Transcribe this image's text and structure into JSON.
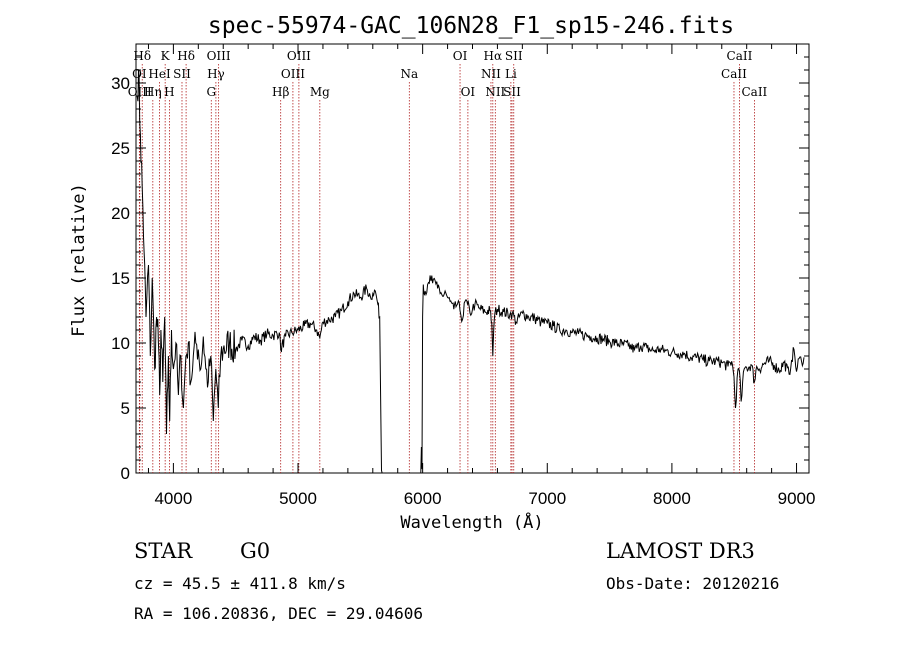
{
  "chart_data": {
    "type": "line",
    "title": "spec-55974-GAC_106N28_F1_sp15-246.fits",
    "xlabel": "Wavelength (Å)",
    "ylabel": "Flux (relative)",
    "xlim": [
      3700,
      9100
    ],
    "ylim": [
      0,
      33
    ],
    "x_ticks": [
      4000,
      5000,
      6000,
      7000,
      8000,
      9000
    ],
    "y_ticks": [
      0,
      5,
      10,
      15,
      20,
      25,
      30
    ],
    "x_tick_labels": [
      "4000",
      "5000",
      "6000",
      "7000",
      "8000",
      "9000"
    ],
    "y_tick_labels": [
      "0",
      "5",
      "10",
      "15",
      "20",
      "25",
      "30"
    ],
    "line_color": "#000000",
    "marker_color": "#b22222",
    "spectrum": {
      "name": "flux",
      "x": [
        3710,
        3720,
        3735,
        3750,
        3765,
        3780,
        3800,
        3815,
        3830,
        3850,
        3865,
        3880,
        3890,
        3900,
        3915,
        3930,
        3945,
        3960,
        3970,
        3985,
        4000,
        4020,
        4040,
        4060,
        4080,
        4100,
        4120,
        4140,
        4160,
        4180,
        4200,
        4220,
        4240,
        4260,
        4280,
        4300,
        4320,
        4340,
        4360,
        4380,
        4400,
        4450,
        4500,
        4550,
        4600,
        4650,
        4700,
        4750,
        4800,
        4850,
        4861,
        4900,
        4950,
        5000,
        5050,
        5100,
        5150,
        5175,
        5200,
        5250,
        5300,
        5350,
        5400,
        5450,
        5500,
        5550,
        5580,
        5600,
        5620,
        5640,
        5655,
        5665,
        5670,
        5675,
        5680,
        5685,
        5700,
        5800,
        5900,
        5970,
        5985,
        5990,
        5995,
        6000,
        6005,
        6010,
        6020,
        6040,
        6060,
        6080,
        6100,
        6120,
        6140,
        6160,
        6180,
        6200,
        6220,
        6250,
        6280,
        6300,
        6320,
        6340,
        6360,
        6380,
        6400,
        6420,
        6450,
        6500,
        6540,
        6555,
        6563,
        6570,
        6580,
        6600,
        6650,
        6700,
        6720,
        6750,
        6800,
        6850,
        6900,
        6950,
        7000,
        7050,
        7100,
        7150,
        7200,
        7250,
        7300,
        7350,
        7400,
        7450,
        7500,
        7550,
        7600,
        7650,
        7700,
        7750,
        7800,
        7850,
        7900,
        7950,
        8000,
        8050,
        8100,
        8150,
        8200,
        8250,
        8300,
        8350,
        8400,
        8450,
        8480,
        8498,
        8510,
        8530,
        8542,
        8555,
        8580,
        8600,
        8640,
        8662,
        8680,
        8700,
        8740,
        8780,
        8820,
        8860,
        8900,
        8940,
        8960,
        8980,
        9000,
        9020,
        9040,
        9060
      ],
      "y": [
        29,
        31,
        26,
        22,
        17,
        12,
        16,
        9,
        15,
        8,
        12,
        10,
        6,
        11,
        7,
        12,
        3,
        9,
        4,
        11,
        8,
        10,
        6,
        9,
        5,
        9,
        10,
        7,
        9,
        10,
        9.5,
        8,
        10.5,
        8,
        7,
        9,
        4,
        8,
        5,
        9,
        9.5,
        10,
        9.5,
        10.2,
        9.8,
        10.5,
        10.2,
        10.7,
        10.6,
        10.8,
        9.5,
        10.5,
        10.8,
        11.0,
        11.3,
        11.5,
        11.0,
        10.4,
        11.6,
        11.8,
        12.0,
        12.5,
        13.2,
        13.8,
        13.5,
        14.2,
        13.6,
        13.8,
        14.0,
        13.0,
        12.0,
        4.0,
        0.2,
        0.0,
        0.0,
        0.0,
        0.0,
        0.0,
        0.0,
        0.0,
        0.0,
        2.0,
        0.3,
        12.0,
        14.5,
        13.8,
        14.0,
        14.5,
        15.2,
        14.6,
        14.8,
        14.2,
        13.8,
        13.6,
        14.0,
        13.5,
        13.2,
        12.6,
        13.0,
        12.5,
        11.8,
        13.2,
        13.0,
        12.3,
        12.6,
        13.0,
        12.7,
        12.4,
        12.5,
        11.5,
        9.0,
        11.0,
        12.3,
        12.6,
        12.4,
        12.2,
        12.3,
        11.6,
        12.3,
        12.0,
        11.9,
        11.6,
        11.5,
        11.3,
        11.0,
        11.0,
        10.8,
        10.7,
        10.6,
        10.5,
        10.4,
        10.3,
        10.1,
        10.0,
        9.9,
        9.8,
        9.5,
        9.8,
        9.6,
        9.4,
        9.5,
        9.4,
        9.3,
        9.2,
        9.2,
        8.9,
        8.9,
        8.7,
        8.6,
        8.6,
        8.5,
        8.2,
        8.6,
        7.4,
        5.0,
        8.0,
        7.8,
        5.5,
        8.0,
        8.1,
        8.3,
        7.0,
        8.2,
        8.0,
        8.4,
        8.6,
        8.3,
        7.9,
        8.5,
        7.6,
        8.7,
        9.5,
        7.8,
        8.8,
        8.6,
        8.9
      ]
    },
    "lines": [
      {
        "label": "Hδ",
        "wl": 3750,
        "row": 0
      },
      {
        "label": "K",
        "wl": 3934,
        "row": 0
      },
      {
        "label": "Hδ",
        "wl": 4102,
        "row": 0
      },
      {
        "label": "OIII",
        "wl": 4363,
        "row": 0
      },
      {
        "label": "OIII",
        "wl": 5007,
        "row": 0
      },
      {
        "label": "OI",
        "wl": 6300,
        "row": 0
      },
      {
        "label": "Hα",
        "wl": 6563,
        "row": 0
      },
      {
        "label": "SII",
        "wl": 6731,
        "row": 0
      },
      {
        "label": "CaII",
        "wl": 8542,
        "row": 0
      },
      {
        "label": "OI",
        "wl": 3727,
        "row": 1
      },
      {
        "label": "HeI",
        "wl": 3889,
        "row": 1
      },
      {
        "label": "SII",
        "wl": 4069,
        "row": 1
      },
      {
        "label": "Hγ",
        "wl": 4341,
        "row": 1
      },
      {
        "label": "OIII",
        "wl": 4959,
        "row": 1
      },
      {
        "label": "Na",
        "wl": 5893,
        "row": 1
      },
      {
        "label": "NII",
        "wl": 6548,
        "row": 1
      },
      {
        "label": "Li",
        "wl": 6708,
        "row": 1
      },
      {
        "label": "CaII",
        "wl": 8498,
        "row": 1
      },
      {
        "label": "OIII",
        "wl": 3730,
        "row": 2
      },
      {
        "label": "Hη",
        "wl": 3835,
        "row": 2
      },
      {
        "label": "H",
        "wl": 3968,
        "row": 2
      },
      {
        "label": "G",
        "wl": 4304,
        "row": 2
      },
      {
        "label": "Hβ",
        "wl": 4861,
        "row": 2
      },
      {
        "label": "Mg",
        "wl": 5175,
        "row": 2
      },
      {
        "label": "OI",
        "wl": 6363,
        "row": 2
      },
      {
        "label": "NII",
        "wl": 6583,
        "row": 2
      },
      {
        "label": "SII",
        "wl": 6717,
        "row": 2
      },
      {
        "label": "CaII",
        "wl": 8662,
        "row": 2
      }
    ]
  },
  "info": {
    "object_class": "STAR",
    "subclass": "G0",
    "survey": "LAMOST DR3",
    "cz": "cz = 45.5 ± 411.8 km/s",
    "obs_date": "Obs-Date: 20120216",
    "coords": "RA = 106.20836, DEC =  29.04606"
  }
}
